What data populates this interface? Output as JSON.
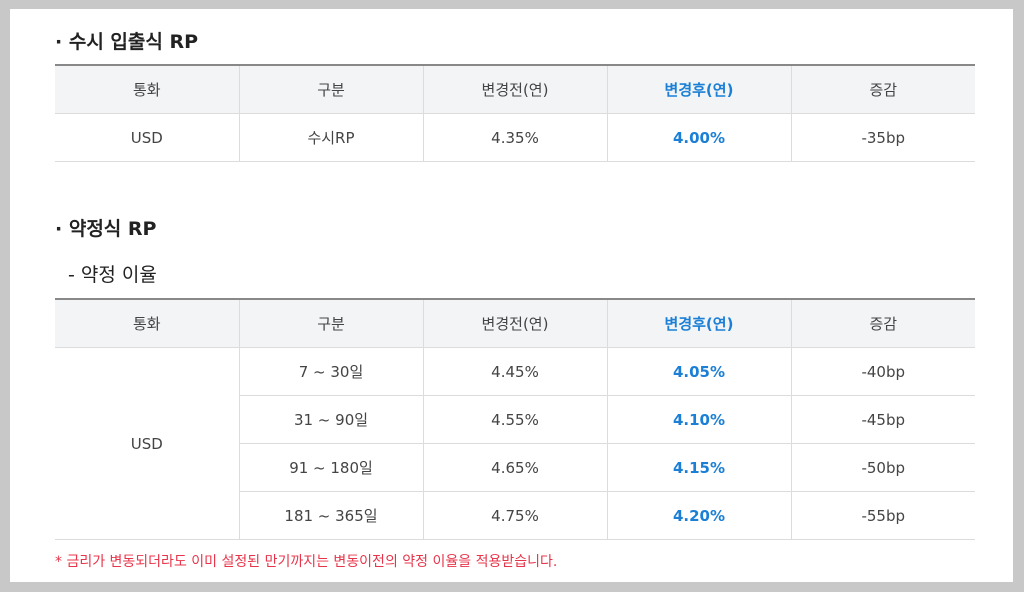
{
  "section1": {
    "title": "· 수시 입출식 RP",
    "headers": [
      "통화",
      "구분",
      "변경전(연)",
      "변경후(연)",
      "증감"
    ],
    "row": {
      "currency": "USD",
      "type": "수시RP",
      "before": "4.35%",
      "after": "4.00%",
      "change": "-35bp"
    }
  },
  "section2": {
    "title": "· 약정식 RP",
    "subtitle": "-  약정 이율",
    "headers": [
      "통화",
      "구분",
      "변경전(연)",
      "변경후(연)",
      "증감"
    ],
    "currency": "USD",
    "rows": [
      {
        "period": "7 ~ 30일",
        "before": "4.45%",
        "after": "4.05%",
        "change": "-40bp"
      },
      {
        "period": "31 ~ 90일",
        "before": "4.55%",
        "after": "4.10%",
        "change": "-45bp"
      },
      {
        "period": "91 ~ 180일",
        "before": "4.65%",
        "after": "4.15%",
        "change": "-50bp"
      },
      {
        "period": "181 ~ 365일",
        "before": "4.75%",
        "after": "4.20%",
        "change": "-55bp"
      }
    ]
  },
  "note": "* 금리가 변동되더라도 이미 설정된 만기까지는 변동이전의 약정 이율을 적용받습니다.",
  "colors": {
    "highlight": "#1b7fd6",
    "note": "#e8344a",
    "header_bg": "#f2f4f6"
  }
}
